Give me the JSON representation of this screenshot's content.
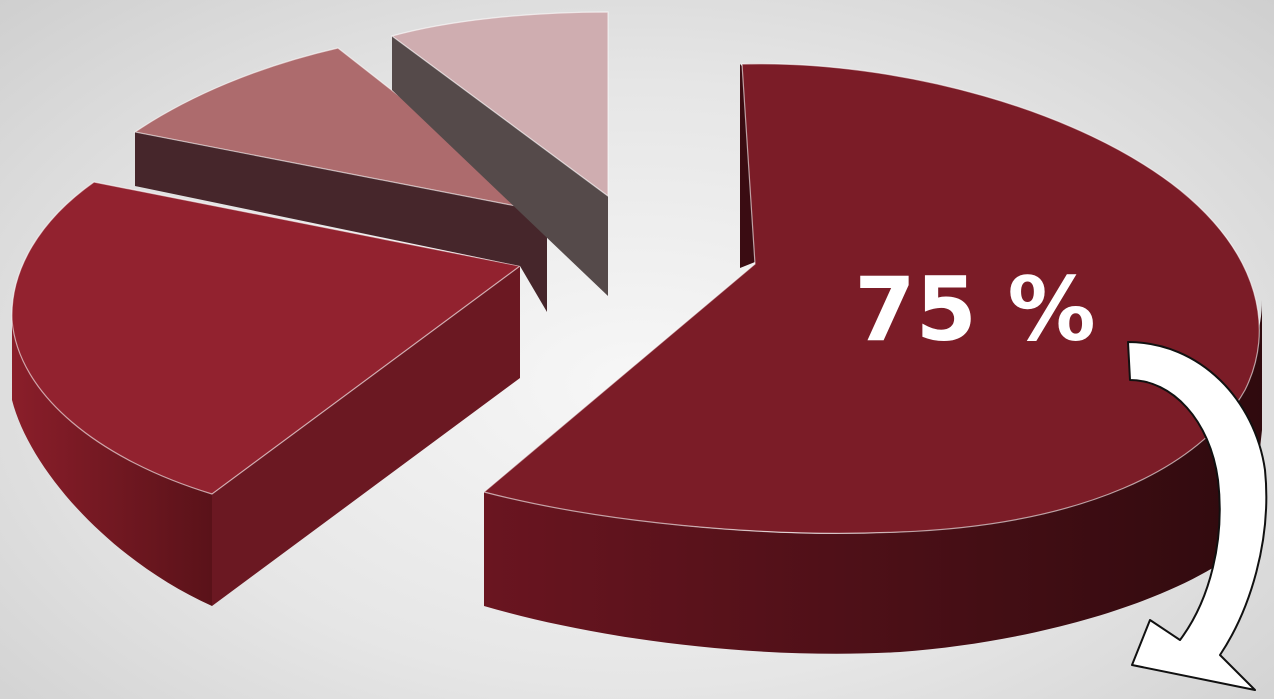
{
  "chart_data": {
    "type": "pie",
    "title": "",
    "slices": [
      {
        "value": 75,
        "color": "#7b1c27",
        "label": "75 %"
      },
      {
        "value": 15,
        "color": "#92222f"
      },
      {
        "value": 5,
        "color": "#ad6b6d"
      },
      {
        "value": 5,
        "color": "#cfadb0"
      }
    ],
    "labels": [
      "75 %"
    ],
    "annotation": "curved-arrow"
  }
}
